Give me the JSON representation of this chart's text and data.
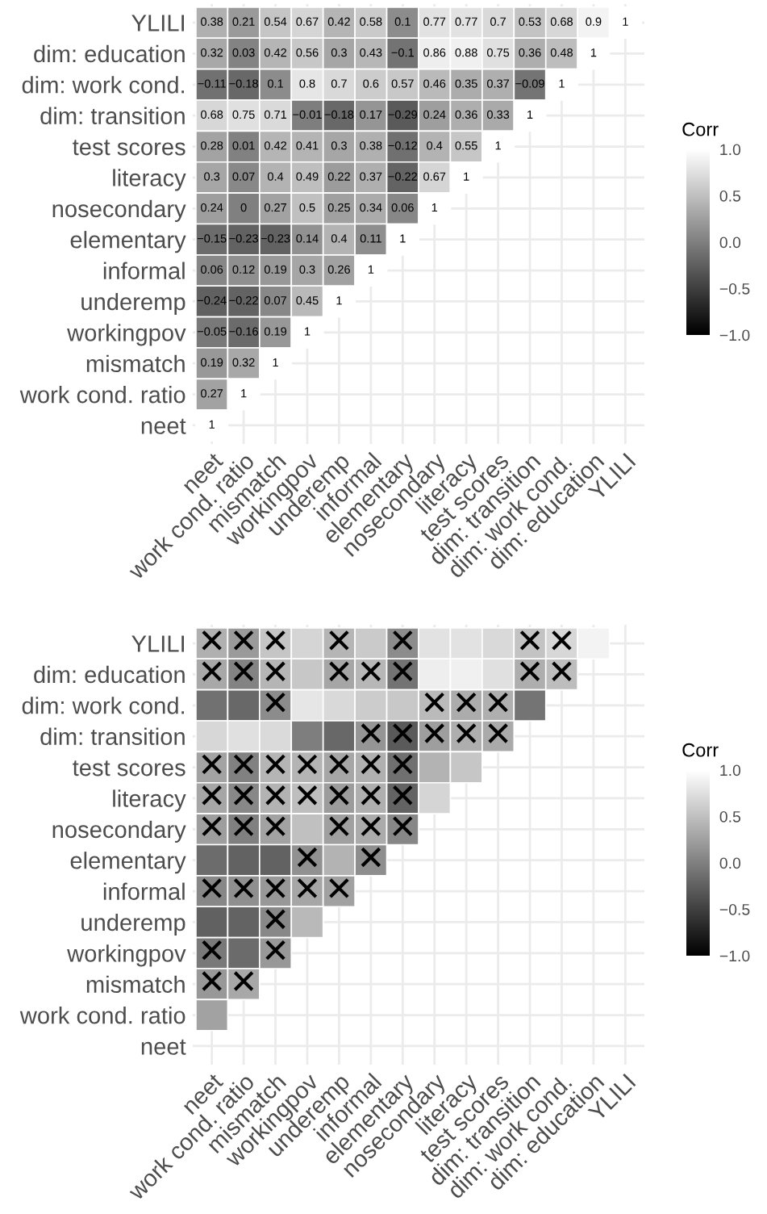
{
  "chart_data": [
    {
      "type": "heatmap",
      "categories": [
        "neet",
        "work cond. ratio",
        "mismatch",
        "workingpov",
        "underemp",
        "informal",
        "elementary",
        "nosecondary",
        "literacy",
        "test scores",
        "dim: transition",
        "dim: work cond.",
        "dim: education",
        "YLILI"
      ],
      "y_categories": [
        "YLILI",
        "dim: education",
        "dim: work cond.",
        "dim: transition",
        "test scores",
        "literacy",
        "nosecondary",
        "elementary",
        "informal",
        "underemp",
        "workingpov",
        "mismatch",
        "work cond. ratio",
        "neet"
      ],
      "cells": [
        [
          0.38,
          0.21,
          0.54,
          0.67,
          0.42,
          0.58,
          0.1,
          0.77,
          0.77,
          0.7,
          0.53,
          0.68,
          0.9,
          1
        ],
        [
          0.32,
          0.03,
          0.42,
          0.56,
          0.3,
          0.43,
          -0.1,
          0.86,
          0.88,
          0.75,
          0.36,
          0.48,
          1,
          null
        ],
        [
          -0.11,
          -0.18,
          0.1,
          0.8,
          0.7,
          0.6,
          0.57,
          0.46,
          0.35,
          0.37,
          -0.09,
          1,
          null,
          null
        ],
        [
          0.68,
          0.75,
          0.71,
          -0.01,
          -0.18,
          0.17,
          -0.29,
          0.24,
          0.36,
          0.33,
          1,
          null,
          null,
          null
        ],
        [
          0.28,
          0.01,
          0.42,
          0.41,
          0.3,
          0.38,
          -0.12,
          0.4,
          0.55,
          1,
          null,
          null,
          null,
          null
        ],
        [
          0.3,
          0.07,
          0.4,
          0.49,
          0.22,
          0.37,
          -0.22,
          0.67,
          1,
          null,
          null,
          null,
          null,
          null
        ],
        [
          0.24,
          0,
          0.27,
          0.5,
          0.25,
          0.34,
          0.06,
          1,
          null,
          null,
          null,
          null,
          null,
          null
        ],
        [
          -0.15,
          -0.23,
          -0.23,
          0.14,
          0.4,
          0.11,
          1,
          null,
          null,
          null,
          null,
          null,
          null,
          null
        ],
        [
          0.06,
          0.12,
          0.19,
          0.3,
          0.26,
          1,
          null,
          null,
          null,
          null,
          null,
          null,
          null,
          null
        ],
        [
          -0.24,
          -0.22,
          0.07,
          0.45,
          1,
          null,
          null,
          null,
          null,
          null,
          null,
          null,
          null,
          null
        ],
        [
          -0.05,
          -0.16,
          0.19,
          1,
          null,
          null,
          null,
          null,
          null,
          null,
          null,
          null,
          null,
          null
        ],
        [
          0.19,
          0.32,
          1,
          null,
          null,
          null,
          null,
          null,
          null,
          null,
          null,
          null,
          null,
          null
        ],
        [
          0.27,
          1,
          null,
          null,
          null,
          null,
          null,
          null,
          null,
          null,
          null,
          null,
          null,
          null
        ],
        [
          1,
          null,
          null,
          null,
          null,
          null,
          null,
          null,
          null,
          null,
          null,
          null,
          null,
          null
        ]
      ],
      "data_labels": true,
      "grid": true,
      "clabel": "Corr",
      "clim": [
        -1,
        1
      ],
      "cticks": [
        {
          "value": -1,
          "label": "−1.0"
        },
        {
          "value": -0.5,
          "label": "−0.5"
        },
        {
          "value": 0,
          "label": "0.0"
        },
        {
          "value": 0.5,
          "label": "0.5"
        },
        {
          "value": 1,
          "label": "1.0"
        }
      ]
    },
    {
      "type": "heatmap",
      "categories": [
        "neet",
        "work cond. ratio",
        "mismatch",
        "workingpov",
        "underemp",
        "informal",
        "elementary",
        "nosecondary",
        "literacy",
        "test scores",
        "dim: transition",
        "dim: work cond.",
        "dim: education",
        "YLILI"
      ],
      "y_categories": [
        "YLILI",
        "dim: education",
        "dim: work cond.",
        "dim: transition",
        "test scores",
        "literacy",
        "nosecondary",
        "elementary",
        "informal",
        "underemp",
        "workingpov",
        "mismatch",
        "work cond. ratio",
        "neet"
      ],
      "cells": [
        [
          0.38,
          0.21,
          0.54,
          0.67,
          0.42,
          0.58,
          0.1,
          0.77,
          0.77,
          0.7,
          0.53,
          0.68,
          0.9,
          null
        ],
        [
          0.32,
          0.03,
          0.42,
          0.56,
          0.3,
          0.43,
          -0.1,
          0.86,
          0.88,
          0.75,
          0.36,
          0.48,
          null,
          null
        ],
        [
          -0.11,
          -0.18,
          0.1,
          0.8,
          0.7,
          0.6,
          0.57,
          0.46,
          0.35,
          0.37,
          -0.09,
          null,
          null,
          null
        ],
        [
          0.68,
          0.75,
          0.71,
          -0.01,
          -0.18,
          0.17,
          -0.29,
          0.24,
          0.36,
          0.33,
          null,
          null,
          null,
          null
        ],
        [
          0.28,
          0.01,
          0.42,
          0.41,
          0.3,
          0.38,
          -0.12,
          0.4,
          0.55,
          null,
          null,
          null,
          null,
          null
        ],
        [
          0.3,
          0.07,
          0.4,
          0.49,
          0.22,
          0.37,
          -0.22,
          0.67,
          null,
          null,
          null,
          null,
          null,
          null
        ],
        [
          0.24,
          0,
          0.27,
          0.5,
          0.25,
          0.34,
          0.06,
          null,
          null,
          null,
          null,
          null,
          null,
          null
        ],
        [
          -0.15,
          -0.23,
          -0.23,
          0.14,
          0.4,
          0.11,
          null,
          null,
          null,
          null,
          null,
          null,
          null,
          null
        ],
        [
          0.06,
          0.12,
          0.19,
          0.3,
          0.26,
          null,
          null,
          null,
          null,
          null,
          null,
          null,
          null,
          null
        ],
        [
          -0.24,
          -0.22,
          0.07,
          0.45,
          null,
          null,
          null,
          null,
          null,
          null,
          null,
          null,
          null,
          null
        ],
        [
          -0.05,
          -0.16,
          0.19,
          null,
          null,
          null,
          null,
          null,
          null,
          null,
          null,
          null,
          null,
          null
        ],
        [
          0.19,
          0.32,
          null,
          null,
          null,
          null,
          null,
          null,
          null,
          null,
          null,
          null,
          null,
          null
        ],
        [
          0.27,
          null,
          null,
          null,
          null,
          null,
          null,
          null,
          null,
          null,
          null,
          null,
          null,
          null
        ],
        [
          null,
          null,
          null,
          null,
          null,
          null,
          null,
          null,
          null,
          null,
          null,
          null,
          null,
          null
        ]
      ],
      "cell_labels": [
        [
          "✕",
          "✕",
          "✕",
          null,
          "✕",
          null,
          "✕",
          null,
          null,
          null,
          "✕",
          "✕",
          null,
          null
        ],
        [
          "✕",
          "✕",
          "✕",
          null,
          "✕",
          "✕",
          "✕",
          null,
          null,
          null,
          "✕",
          "✕",
          null,
          null
        ],
        [
          null,
          null,
          "✕",
          null,
          null,
          null,
          null,
          "✕",
          "✕",
          "✕",
          null,
          null,
          null,
          null
        ],
        [
          null,
          null,
          null,
          null,
          null,
          "✕",
          "✕",
          "✕",
          "✕",
          "✕",
          null,
          null,
          null,
          null
        ],
        [
          "✕",
          "✕",
          "✕",
          "✕",
          "✕",
          "✕",
          "✕",
          null,
          null,
          null,
          null,
          null,
          null,
          null
        ],
        [
          "✕",
          "✕",
          "✕",
          "✕",
          "✕",
          "✕",
          "✕",
          null,
          null,
          null,
          null,
          null,
          null,
          null
        ],
        [
          "✕",
          "✕",
          "✕",
          null,
          "✕",
          "✕",
          "✕",
          null,
          null,
          null,
          null,
          null,
          null,
          null
        ],
        [
          null,
          null,
          null,
          "✕",
          null,
          "✕",
          null,
          null,
          null,
          null,
          null,
          null,
          null,
          null
        ],
        [
          "✕",
          "✕",
          "✕",
          "✕",
          "✕",
          null,
          null,
          null,
          null,
          null,
          null,
          null,
          null,
          null
        ],
        [
          null,
          null,
          "✕",
          null,
          null,
          null,
          null,
          null,
          null,
          null,
          null,
          null,
          null,
          null
        ],
        [
          "✕",
          null,
          "✕",
          null,
          null,
          null,
          null,
          null,
          null,
          null,
          null,
          null,
          null,
          null
        ],
        [
          "✕",
          "✕",
          null,
          null,
          null,
          null,
          null,
          null,
          null,
          null,
          null,
          null,
          null,
          null
        ],
        [
          null,
          null,
          null,
          null,
          null,
          null,
          null,
          null,
          null,
          null,
          null,
          null,
          null,
          null
        ],
        [
          null,
          null,
          null,
          null,
          null,
          null,
          null,
          null,
          null,
          null,
          null,
          null,
          null,
          null
        ]
      ],
      "grid": true,
      "clabel": "Corr",
      "clim": [
        -1,
        1
      ],
      "cticks": [
        {
          "value": -1,
          "label": "−1.0"
        },
        {
          "value": -0.5,
          "label": "−0.5"
        },
        {
          "value": 0,
          "label": "0.0"
        },
        {
          "value": 0.5,
          "label": "0.5"
        },
        {
          "value": 1,
          "label": "1.0"
        }
      ]
    }
  ]
}
